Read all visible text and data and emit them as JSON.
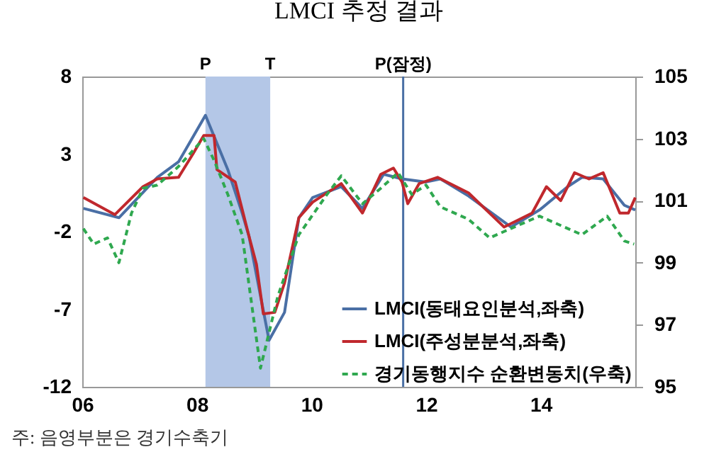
{
  "chart_data": {
    "type": "line",
    "title": "LMCI 추정 결과",
    "xlim": [
      2006,
      2015.65
    ],
    "xticks": [
      {
        "value": 2006,
        "label": "06"
      },
      {
        "value": 2008,
        "label": "08"
      },
      {
        "value": 2010,
        "label": "10"
      },
      {
        "value": 2012,
        "label": "12"
      },
      {
        "value": 2014,
        "label": "14"
      }
    ],
    "ylim": [
      -12,
      8
    ],
    "yticks": [
      -12,
      -7,
      -2,
      3,
      8
    ],
    "y2lim": [
      95,
      105
    ],
    "y2ticks": [
      95,
      97,
      99,
      101,
      103,
      105
    ],
    "series": [
      {
        "name": "LMCI(동태요인분석,좌축)",
        "color": "#4a6fa5",
        "line_style": "solid",
        "x": [
          2006.02,
          2006.64,
          2007.31,
          2007.68,
          2008.15,
          2008.54,
          2008.79,
          2008.91,
          2009.26,
          2009.53,
          2009.78,
          2010.02,
          2010.52,
          2010.89,
          2011.26,
          2011.58,
          2012.0,
          2012.25,
          2012.74,
          2013.48,
          2013.98,
          2014.47,
          2014.72,
          2015.09,
          2015.46,
          2015.65
        ],
        "values": [
          -0.5,
          -1.1,
          1.5,
          2.5,
          5.5,
          2.0,
          -0.8,
          -2.3,
          -9.0,
          -7.2,
          -1.1,
          0.2,
          0.9,
          -0.5,
          1.7,
          1.4,
          1.2,
          1.4,
          0.3,
          -1.7,
          -0.6,
          0.9,
          1.5,
          1.4,
          -0.3,
          -0.6
        ]
      },
      {
        "name": "LMCI(주성분분석,좌축)",
        "color": "#c0282d",
        "line_style": "solid",
        "x": [
          2006.02,
          2006.57,
          2007.06,
          2007.31,
          2007.68,
          2007.93,
          2008.12,
          2008.3,
          2008.35,
          2008.67,
          2008.91,
          2009.04,
          2009.16,
          2009.36,
          2009.53,
          2009.78,
          2010.02,
          2010.52,
          2010.89,
          2011.21,
          2011.43,
          2011.58,
          2011.68,
          2011.88,
          2012.2,
          2012.74,
          2013.36,
          2013.85,
          2014.1,
          2014.35,
          2014.59,
          2014.84,
          2015.09,
          2015.38,
          2015.53,
          2015.65
        ],
        "values": [
          0.2,
          -0.9,
          0.9,
          1.4,
          1.5,
          3.0,
          4.2,
          4.2,
          2.0,
          1.2,
          -2.3,
          -4.1,
          -7.3,
          -7.2,
          -5.3,
          -1.1,
          -0.1,
          1.1,
          -0.8,
          1.7,
          2.1,
          1.2,
          -0.2,
          1.1,
          1.5,
          0.5,
          -1.7,
          -0.8,
          0.9,
          0.0,
          1.8,
          1.4,
          1.8,
          -0.8,
          -0.8,
          0.2
        ]
      },
      {
        "name": "경기동행지수 순환변동치(우축)",
        "color": "#2fa84f",
        "line_style": "dashed",
        "axis": "y2",
        "x": [
          2006.02,
          2006.2,
          2006.44,
          2006.64,
          2006.86,
          2007.06,
          2007.31,
          2007.68,
          2008.12,
          2008.3,
          2008.54,
          2008.79,
          2009.11,
          2009.41,
          2009.78,
          2010.27,
          2010.52,
          2010.89,
          2011.21,
          2011.51,
          2011.75,
          2012.0,
          2012.25,
          2012.74,
          2013.11,
          2013.6,
          2013.98,
          2014.35,
          2014.72,
          2015.16,
          2015.46,
          2015.63
        ],
        "values": [
          100.1,
          99.6,
          99.8,
          99.0,
          100.6,
          101.4,
          101.5,
          102.1,
          103.0,
          102.3,
          101.2,
          99.9,
          95.6,
          97.9,
          99.9,
          101.2,
          101.8,
          100.9,
          101.4,
          101.9,
          101.2,
          101.5,
          100.8,
          100.4,
          99.8,
          100.2,
          100.5,
          100.2,
          99.9,
          100.5,
          99.7,
          99.6
        ]
      }
    ],
    "bands": [
      {
        "axis": "x",
        "from": 2008.15,
        "to": 2009.28,
        "label": null,
        "color": "#b4c7e7"
      }
    ],
    "ref_lines": [
      {
        "axis": "x",
        "value": 2011.6,
        "label": "P(잠정)",
        "color": "#4a6fa5"
      }
    ],
    "annotations": [
      {
        "text": "P",
        "x": 2008.15,
        "y": 8
      },
      {
        "text": "T",
        "x": 2009.28,
        "y": 8
      },
      "주: 음영부분은 경기수축기"
    ],
    "legend": "bottom right",
    "grid": false,
    "marker": "none"
  }
}
